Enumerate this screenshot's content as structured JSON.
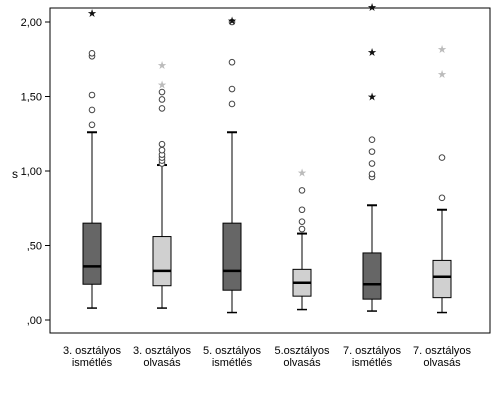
{
  "chart_data": {
    "type": "boxplot",
    "title": "",
    "xlabel": "",
    "ylabel": "s",
    "ylim": [
      0,
      2.1
    ],
    "yticks": [
      {
        "value": 0,
        "label": ",00"
      },
      {
        "value": 0.5,
        "label": ",50"
      },
      {
        "value": 1.0,
        "label": "1,00"
      },
      {
        "value": 1.5,
        "label": "1,50"
      },
      {
        "value": 2.0,
        "label": "2,00"
      }
    ],
    "grid": false,
    "categories": [
      {
        "line1": "3. osztályos",
        "line2": "ismétlés",
        "color": "#666666",
        "min": 0.08,
        "q1": 0.24,
        "median": 0.36,
        "q3": 0.65,
        "max": 1.26,
        "outliers": [
          1.31,
          1.41,
          1.51,
          1.77,
          1.79
        ],
        "extremes": [
          2.06
        ]
      },
      {
        "line1": "3. osztályos",
        "line2": "olvasás",
        "color": "#d0d0d0",
        "min": 0.08,
        "q1": 0.23,
        "median": 0.33,
        "q3": 0.56,
        "max": 1.04,
        "outliers": [
          1.05,
          1.07,
          1.09,
          1.11,
          1.14,
          1.18,
          1.42,
          1.48,
          1.53
        ],
        "extremes": [
          1.58,
          1.71
        ]
      },
      {
        "line1": "5. osztályos",
        "line2": "ismétlés",
        "color": "#666666",
        "min": 0.05,
        "q1": 0.2,
        "median": 0.33,
        "q3": 0.65,
        "max": 1.26,
        "outliers": [
          1.45,
          1.55,
          1.73,
          2.0
        ],
        "extremes": [
          2.01
        ]
      },
      {
        "line1": "5.osztályos",
        "line2": "olvasás",
        "color": "#d0d0d0",
        "min": 0.07,
        "q1": 0.16,
        "median": 0.25,
        "q3": 0.34,
        "max": 0.58,
        "outliers": [
          0.61,
          0.66,
          0.74,
          0.87
        ],
        "extremes": [
          0.99
        ]
      },
      {
        "line1": "7. osztályos",
        "line2": "ismétlés",
        "color": "#666666",
        "min": 0.06,
        "q1": 0.14,
        "median": 0.24,
        "q3": 0.45,
        "max": 0.77,
        "outliers": [
          0.96,
          0.98,
          1.05,
          1.13,
          1.21
        ],
        "extremes": [
          1.5,
          1.8,
          2.1
        ]
      },
      {
        "line1": "7. osztályos",
        "line2": "olvasás",
        "color": "#d0d0d0",
        "min": 0.05,
        "q1": 0.15,
        "median": 0.29,
        "q3": 0.4,
        "max": 0.74,
        "outliers": [
          0.82,
          1.09
        ],
        "extremes": [
          1.65,
          1.82
        ]
      }
    ]
  }
}
